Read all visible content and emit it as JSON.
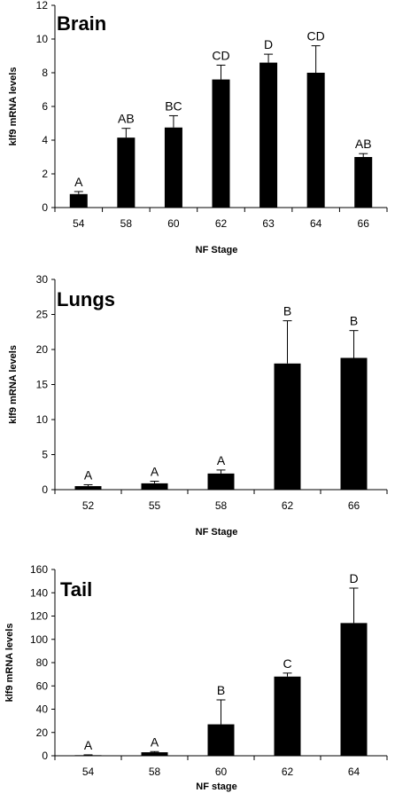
{
  "chart_data": [
    {
      "type": "bar",
      "title": "Brain",
      "xlabel": "NF Stage",
      "ylabel": "klf9 mRNA levels",
      "ylim": [
        0,
        12
      ],
      "yticks": [
        0,
        2,
        4,
        6,
        8,
        10,
        12
      ],
      "categories": [
        "54",
        "58",
        "60",
        "62",
        "63",
        "64",
        "66"
      ],
      "values": [
        0.8,
        4.15,
        4.75,
        7.6,
        8.6,
        8.0,
        3.0
      ],
      "errors": [
        0.15,
        0.55,
        0.7,
        0.85,
        0.5,
        1.6,
        0.2
      ],
      "group_labels": [
        "A",
        "AB",
        "BC",
        "CD",
        "D",
        "CD",
        "AB"
      ],
      "bar_color": "#000000"
    },
    {
      "type": "bar",
      "title": "Lungs",
      "xlabel": "NF Stage",
      "ylabel": "klf9 mRNA levels",
      "ylim": [
        0,
        30
      ],
      "yticks": [
        0,
        5,
        10,
        15,
        20,
        25,
        30
      ],
      "categories": [
        "52",
        "55",
        "58",
        "62",
        "66"
      ],
      "values": [
        0.5,
        0.9,
        2.3,
        18.0,
        18.8
      ],
      "errors": [
        0.2,
        0.3,
        0.5,
        6.1,
        3.9
      ],
      "group_labels": [
        "A",
        "A",
        "A",
        "B",
        "B"
      ],
      "bar_color": "#000000"
    },
    {
      "type": "bar",
      "title": "Tail",
      "xlabel": "NF stage",
      "ylabel": "klf9 mRNA levels",
      "ylim": [
        0,
        160
      ],
      "yticks": [
        0,
        20,
        40,
        60,
        80,
        100,
        120,
        140,
        160
      ],
      "categories": [
        "54",
        "58",
        "60",
        "62",
        "64"
      ],
      "values": [
        0.5,
        3.0,
        27.0,
        68.0,
        114.0
      ],
      "errors": [
        0.3,
        0.6,
        21.0,
        3.0,
        30.0
      ],
      "group_labels": [
        "A",
        "A",
        "B",
        "C",
        "D"
      ],
      "bar_color": "#000000"
    }
  ]
}
